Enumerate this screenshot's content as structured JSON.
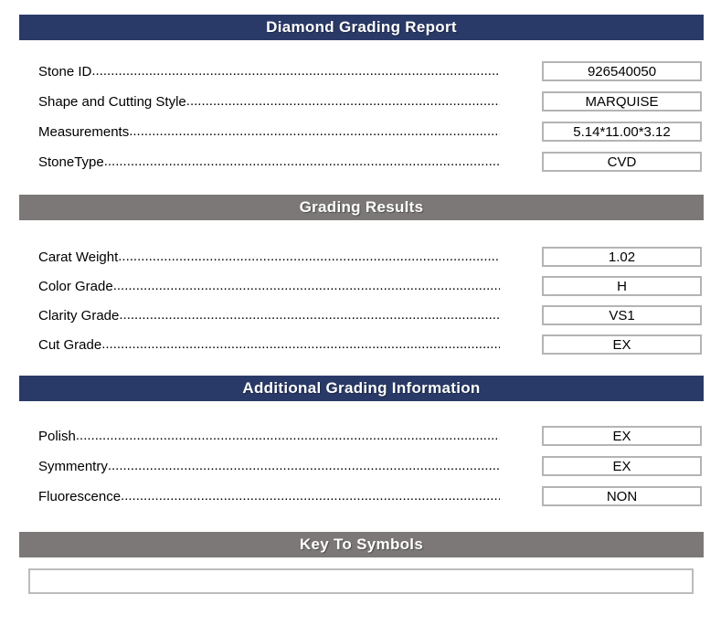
{
  "report_title": "Diamond Grading Report",
  "sections": [
    {
      "title": "Diamond Grading Report",
      "style": "navy",
      "rows": [
        {
          "label": "Stone ID",
          "value": "926540050"
        },
        {
          "label": "Shape and Cutting Style",
          "value": "MARQUISE"
        },
        {
          "label": "Measurements",
          "value": "5.14*11.00*3.12"
        },
        {
          "label": "StoneType",
          "value": "CVD"
        }
      ]
    },
    {
      "title": "Grading Results",
      "style": "gray",
      "rows": [
        {
          "label": "Carat Weight",
          "value": "1.02"
        },
        {
          "label": "Color Grade",
          "value": "H"
        },
        {
          "label": "Clarity Grade",
          "value": "VS1"
        },
        {
          "label": "Cut Grade",
          "value": "EX"
        }
      ]
    },
    {
      "title": "Additional Grading Information",
      "style": "navy",
      "rows": [
        {
          "label": "Polish",
          "value": "EX"
        },
        {
          "label": "Symmentry",
          "value": "EX"
        },
        {
          "label": "Fluorescence",
          "value": "NON"
        }
      ]
    },
    {
      "title": "Key To Symbols",
      "style": "gray",
      "rows": [],
      "notes_box_value": ""
    }
  ],
  "colors": {
    "header_navy": "#2a3a68",
    "header_gray": "#7b7877",
    "header_text": "#ffffff",
    "body_text": "#000000",
    "value_box_border": "#b5b3b3"
  }
}
